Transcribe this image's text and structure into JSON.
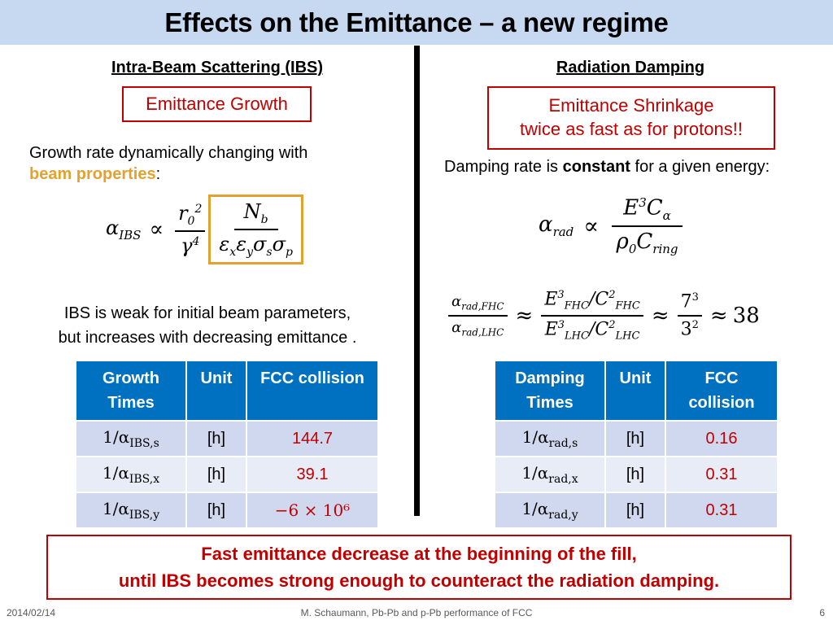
{
  "title": "Effects on the Emittance – a new regime",
  "left": {
    "heading": "Intra-Beam Scattering (IBS)",
    "box": "Emittance Growth",
    "desc_line1": "Growth rate dynamically changing with",
    "desc_highlight": "beam properties",
    "desc_colon": ":",
    "note_line1": "IBS is weak for initial beam parameters,",
    "note_line2": "but increases with decreasing emittance .",
    "table": {
      "headers": [
        "Growth Times",
        "Unit",
        "FCC collision"
      ],
      "rows": [
        {
          "quantity": "1/αIBS,s",
          "unit": "[h]",
          "value": "144.7"
        },
        {
          "quantity": "1/αIBS,x",
          "unit": "[h]",
          "value": "39.1"
        },
        {
          "quantity": "1/αIBS,y",
          "unit": "[h]",
          "value": "−6 × 10⁶"
        }
      ]
    }
  },
  "right": {
    "heading": "Radiation Damping",
    "box_line1": "Emittance Shrinkage",
    "box_line2": "twice as fast as for protons!!",
    "desc_pre": "Damping rate is ",
    "desc_bold": "constant",
    "desc_post": " for a given energy:",
    "ratio_result": "38",
    "table": {
      "headers": [
        "Damping Times",
        "Unit",
        "FCC collision"
      ],
      "rows": [
        {
          "quantity": "1/αrad,s",
          "unit": "[h]",
          "value": "0.16"
        },
        {
          "quantity": "1/αrad,x",
          "unit": "[h]",
          "value": "0.31"
        },
        {
          "quantity": "1/αrad,y",
          "unit": "[h]",
          "value": "0.31"
        }
      ]
    }
  },
  "conclusion": {
    "line1": "Fast emittance decrease at the beginning of the fill,",
    "line2": "until IBS becomes strong enough to counteract the radiation damping."
  },
  "footer": {
    "date": "2014/02/14",
    "author": "M. Schaumann, Pb-Pb and p-Pb performance of FCC",
    "page": "6"
  },
  "colors": {
    "title_bg": "#c6d9f1",
    "accent_red": "#c00000",
    "table_header": "#0070c0",
    "highlight_orange": "#e3a12f"
  }
}
